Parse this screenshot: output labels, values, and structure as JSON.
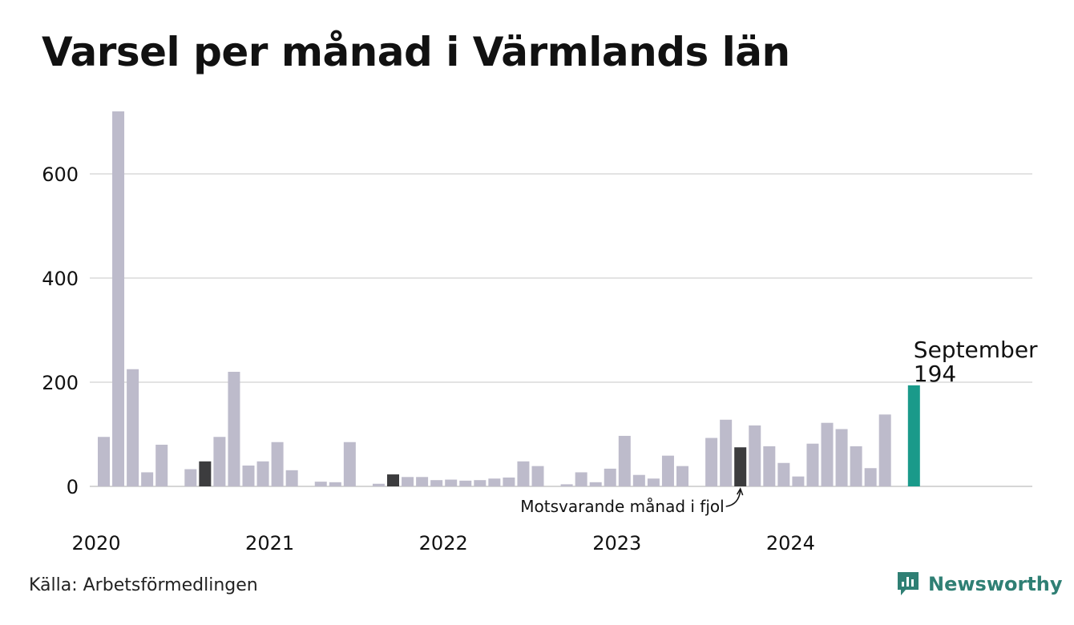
{
  "title": "Varsel per månad i Värmlands län",
  "source": "Källa: Arbetsförmedlingen",
  "brand": "Newsworthy",
  "colors": {
    "bar": "#bdbbcb",
    "highlight_prev": "#3c3c3e",
    "current": "#1a9a8a",
    "grid": "#e3e3e3",
    "brand": "#2f7f74"
  },
  "chart_data": {
    "type": "bar",
    "x_tick_labels": [
      "2020",
      "2021",
      "2022",
      "2023",
      "2024"
    ],
    "y_ticks": [
      0,
      200,
      400,
      600
    ],
    "ylim": [
      0,
      730
    ],
    "grid": true,
    "months": [
      "2020-01",
      "2020-02",
      "2020-03",
      "2020-04",
      "2020-05",
      "2020-06",
      "2020-07",
      "2020-08",
      "2020-09",
      "2020-10",
      "2020-11",
      "2020-12",
      "2021-01",
      "2021-02",
      "2021-03",
      "2021-04",
      "2021-05",
      "2021-06",
      "2021-07",
      "2021-08",
      "2021-09",
      "2021-10",
      "2021-11",
      "2021-12",
      "2022-01",
      "2022-02",
      "2022-03",
      "2022-04",
      "2022-05",
      "2022-06",
      "2022-07",
      "2022-08",
      "2022-09",
      "2022-10",
      "2022-11",
      "2022-12",
      "2023-01",
      "2023-02",
      "2023-03",
      "2023-04",
      "2023-05",
      "2023-06",
      "2023-07",
      "2023-08",
      "2023-09",
      "2023-10",
      "2023-11",
      "2023-12",
      "2024-01",
      "2024-02",
      "2024-03",
      "2024-04",
      "2024-05",
      "2024-06",
      "2024-07",
      "2024-08",
      "2024-09"
    ],
    "values": [
      95,
      720,
      225,
      27,
      80,
      0,
      33,
      48,
      95,
      220,
      40,
      48,
      85,
      31,
      0,
      9,
      8,
      85,
      0,
      5,
      23,
      18,
      18,
      12,
      13,
      11,
      12,
      15,
      17,
      48,
      39,
      0,
      4,
      27,
      8,
      34,
      97,
      22,
      15,
      59,
      39,
      0,
      93,
      128,
      75,
      117,
      77,
      45,
      19,
      82,
      122,
      110,
      77,
      35,
      138,
      0,
      194
    ],
    "highlight_prev_indices": [
      7,
      20,
      44
    ],
    "current_index": 56,
    "current_label": "September",
    "current_value_label": "194",
    "annotation": "Motsvarande månad i fjol"
  }
}
